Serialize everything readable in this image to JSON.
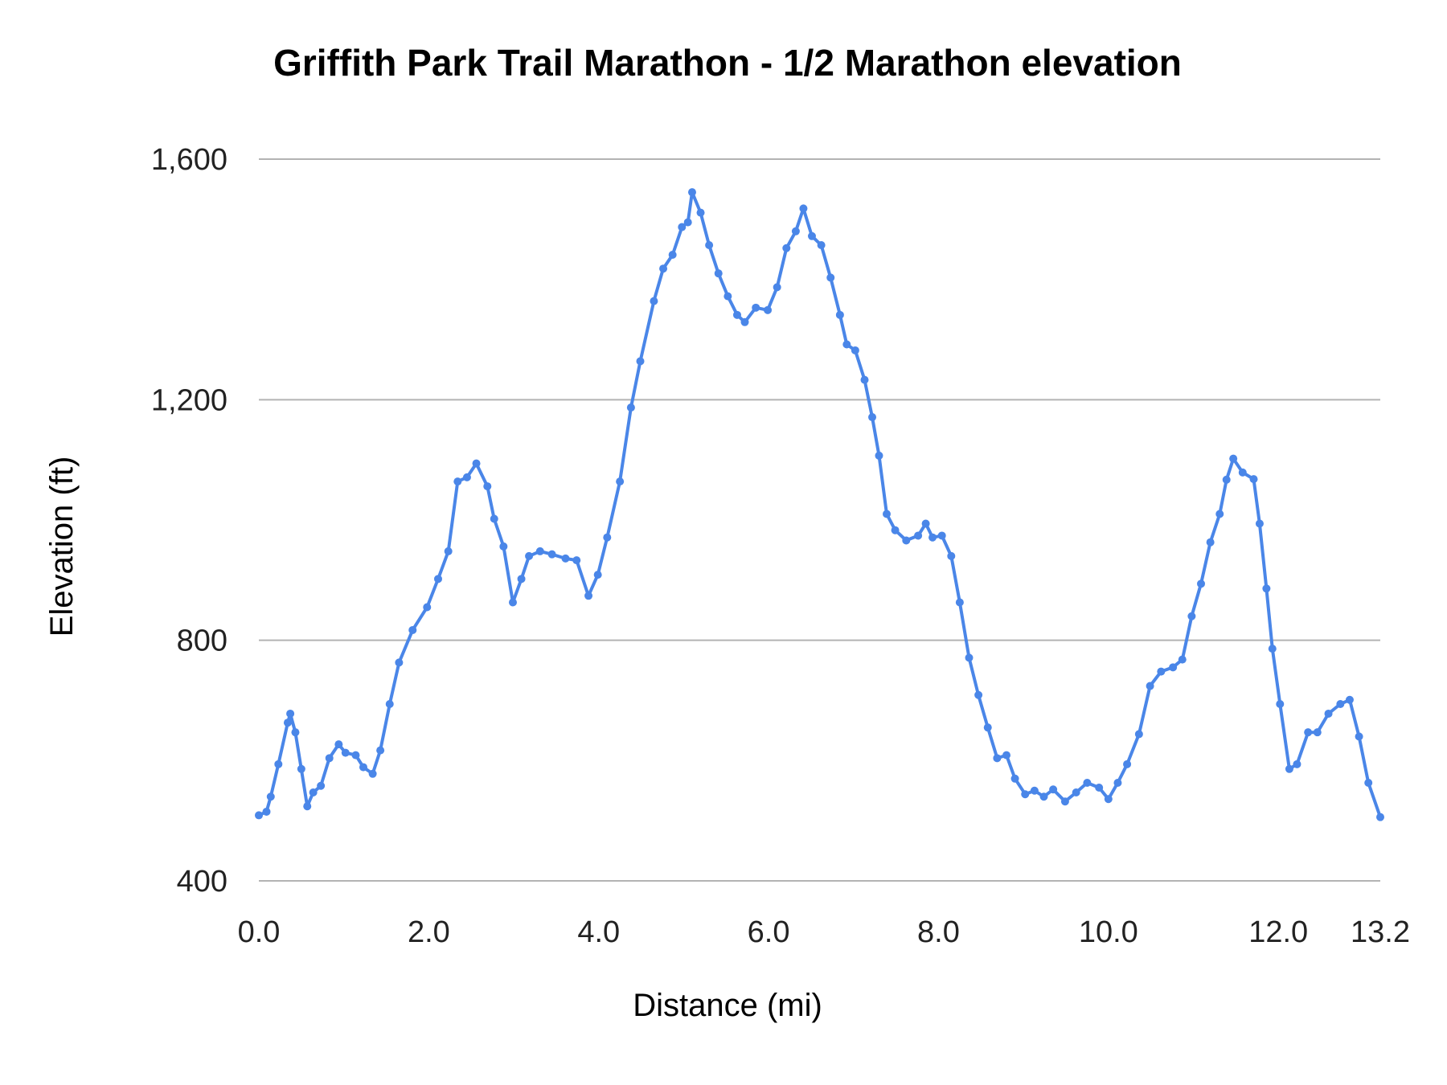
{
  "chart_data": {
    "type": "line",
    "title": "Griffith Park Trail Marathon - 1/2 Marathon elevation",
    "xlabel": "Distance (mi)",
    "ylabel": "Elevation (ft)",
    "xlim": [
      0,
      13.2
    ],
    "ylim": [
      400,
      1600
    ],
    "x_ticks": [
      "0.0",
      "2.0",
      "4.0",
      "6.0",
      "8.0",
      "10.0",
      "12.0",
      "13.2"
    ],
    "x_tick_values": [
      0,
      2,
      4,
      6,
      8,
      10,
      12,
      13.2
    ],
    "y_ticks": [
      "400",
      "800",
      "1,200",
      "1,600"
    ],
    "y_tick_values": [
      400,
      800,
      1200,
      1600
    ],
    "grid": "horizontal",
    "legend": "none",
    "color": "#4a86e8",
    "series": [
      {
        "x": [
          0,
          0.09,
          0.14,
          0.23,
          0.34,
          0.37,
          0.43,
          0.5,
          0.57,
          0.64,
          0.73,
          0.83,
          0.94,
          1.02,
          1.14,
          1.23,
          1.34,
          1.43,
          1.54,
          1.65,
          1.81,
          1.98,
          2.11,
          2.23,
          2.34,
          2.45,
          2.56,
          2.69,
          2.77,
          2.88,
          2.99,
          3.09,
          3.18,
          3.31,
          3.45,
          3.61,
          3.74,
          3.88,
          3.99,
          4.1,
          4.25,
          4.38,
          4.49,
          4.65,
          4.76,
          4.87,
          4.98,
          5.05,
          5.1,
          5.2,
          5.3,
          5.41,
          5.52,
          5.63,
          5.72,
          5.85,
          5.99,
          6.1,
          6.21,
          6.32,
          6.41,
          6.51,
          6.62,
          6.73,
          6.84,
          6.92,
          7.02,
          7.13,
          7.22,
          7.3,
          7.39,
          7.49,
          7.62,
          7.76,
          7.85,
          7.93,
          8.04,
          8.15,
          8.25,
          8.36,
          8.47,
          8.58,
          8.69,
          8.8,
          8.9,
          9.02,
          9.13,
          9.24,
          9.35,
          9.49,
          9.62,
          9.75,
          9.89,
          10.0,
          10.11,
          10.22,
          10.36,
          10.49,
          10.62,
          10.76,
          10.87,
          10.98,
          11.09,
          11.2,
          11.31,
          11.39,
          11.47,
          11.58,
          11.71,
          11.78,
          11.86,
          11.93,
          12.02,
          12.13,
          12.22,
          12.35,
          12.46,
          12.59,
          12.73,
          12.84,
          12.95,
          13.06,
          13.2
        ],
        "y": [
          509,
          515,
          540,
          594,
          663,
          678,
          647,
          586,
          524,
          547,
          558,
          604,
          627,
          613,
          609,
          589,
          578,
          617,
          694,
          763,
          817,
          855,
          902,
          948,
          1064,
          1071,
          1094,
          1056,
          1002,
          956,
          863,
          902,
          940,
          948,
          943,
          936,
          933,
          874,
          909,
          971,
          1064,
          1187,
          1264,
          1364,
          1418,
          1441,
          1487,
          1495,
          1545,
          1511,
          1457,
          1410,
          1372,
          1341,
          1329,
          1353,
          1349,
          1387,
          1452,
          1480,
          1518,
          1472,
          1457,
          1403,
          1341,
          1292,
          1282,
          1233,
          1171,
          1107,
          1010,
          983,
          966,
          974,
          994,
          971,
          974,
          940,
          863,
          771,
          709,
          655,
          604,
          609,
          570,
          544,
          550,
          540,
          552,
          532,
          547,
          563,
          555,
          536,
          563,
          594,
          644,
          724,
          748,
          755,
          768,
          840,
          894,
          963,
          1010,
          1067,
          1102,
          1079,
          1068,
          994,
          886,
          786,
          694,
          586,
          594,
          647,
          647,
          678,
          694,
          701,
          640,
          563,
          506
        ]
      }
    ]
  }
}
